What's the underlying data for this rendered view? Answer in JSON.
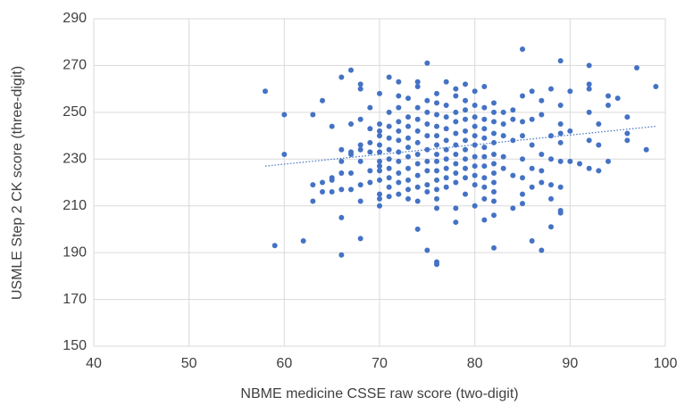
{
  "chart_data": {
    "type": "scatter",
    "xlabel": "NBME medicine CSSE raw score (two-digit)",
    "ylabel": "USMLE Step 2 CK score (three-digit)",
    "xlim": [
      40,
      100
    ],
    "xticks": [
      40,
      50,
      60,
      70,
      80,
      90,
      100
    ],
    "ylim": [
      150,
      290
    ],
    "yticks": [
      150,
      170,
      190,
      210,
      230,
      250,
      270,
      290
    ],
    "grid": true,
    "color": "#4472c4",
    "trendline": {
      "x": [
        58,
        99
      ],
      "y": [
        227,
        244
      ],
      "color": "#4472c4"
    },
    "x": [
      58,
      59,
      60,
      60,
      62,
      63,
      63,
      63,
      64,
      64,
      64,
      65,
      65,
      65,
      65,
      66,
      66,
      66,
      66,
      66,
      66,
      66,
      67,
      67,
      67,
      67,
      67,
      67,
      68,
      68,
      68,
      68,
      68,
      68,
      68,
      68,
      68,
      69,
      69,
      69,
      69,
      69,
      69,
      70,
      70,
      70,
      70,
      70,
      70,
      70,
      70,
      70,
      70,
      70,
      70,
      70,
      71,
      71,
      71,
      71,
      71,
      71,
      71,
      71,
      71,
      71,
      72,
      72,
      72,
      72,
      72,
      72,
      72,
      72,
      72,
      72,
      72,
      73,
      73,
      73,
      73,
      73,
      73,
      73,
      73,
      73,
      73,
      74,
      74,
      74,
      74,
      74,
      74,
      74,
      74,
      74,
      74,
      74,
      74,
      75,
      75,
      75,
      75,
      75,
      75,
      75,
      75,
      75,
      75,
      75,
      76,
      76,
      76,
      76,
      76,
      76,
      76,
      76,
      76,
      76,
      76,
      76,
      76,
      76,
      76,
      77,
      77,
      77,
      77,
      77,
      77,
      77,
      77,
      77,
      77,
      78,
      78,
      78,
      78,
      78,
      78,
      78,
      78,
      78,
      78,
      78,
      78,
      79,
      79,
      79,
      79,
      79,
      79,
      79,
      79,
      79,
      79,
      79,
      80,
      80,
      80,
      80,
      80,
      80,
      80,
      80,
      80,
      80,
      80,
      81,
      81,
      81,
      81,
      81,
      81,
      81,
      81,
      81,
      81,
      81,
      81,
      82,
      82,
      82,
      82,
      82,
      82,
      82,
      82,
      82,
      82,
      82,
      82,
      82,
      83,
      83,
      83,
      83,
      83,
      84,
      84,
      84,
      84,
      84,
      85,
      85,
      85,
      85,
      85,
      85,
      85,
      85,
      86,
      86,
      86,
      86,
      86,
      86,
      87,
      87,
      87,
      87,
      87,
      87,
      88,
      88,
      88,
      88,
      88,
      88,
      89,
      89,
      89,
      89,
      89,
      89,
      89,
      89,
      89,
      90,
      90,
      90,
      91,
      92,
      92,
      92,
      92,
      92,
      92,
      93,
      93,
      93,
      94,
      94,
      94,
      95,
      96,
      96,
      96,
      97,
      98,
      99
    ],
    "y": [
      259,
      193,
      249,
      232,
      195,
      219,
      212,
      249,
      220,
      216,
      255,
      221,
      216,
      244,
      222,
      265,
      234,
      229,
      224,
      217,
      205,
      189,
      268,
      245,
      233,
      232,
      224,
      217,
      262,
      260,
      247,
      236,
      234,
      229,
      219,
      212,
      196,
      252,
      243,
      237,
      233,
      225,
      220,
      258,
      245,
      242,
      240,
      236,
      233,
      229,
      227,
      225,
      221,
      215,
      213,
      210,
      265,
      250,
      244,
      239,
      234,
      230,
      226,
      222,
      218,
      214,
      263,
      257,
      252,
      246,
      242,
      238,
      233,
      229,
      224,
      220,
      215,
      256,
      248,
      244,
      239,
      235,
      231,
      226,
      221,
      217,
      213,
      263,
      261,
      252,
      247,
      242,
      237,
      232,
      228,
      223,
      218,
      212,
      200,
      271,
      255,
      250,
      245,
      240,
      234,
      229,
      225,
      219,
      216,
      191,
      258,
      254,
      249,
      244,
      240,
      236,
      232,
      229,
      225,
      221,
      217,
      213,
      209,
      186,
      185,
      263,
      253,
      248,
      243,
      238,
      234,
      230,
      226,
      222,
      218,
      260,
      257,
      250,
      246,
      241,
      236,
      232,
      228,
      224,
      220,
      209,
      203,
      262,
      255,
      251,
      247,
      242,
      238,
      234,
      230,
      226,
      222,
      215,
      259,
      253,
      248,
      244,
      240,
      236,
      231,
      227,
      223,
      219,
      210,
      261,
      252,
      247,
      243,
      239,
      235,
      231,
      227,
      222,
      218,
      213,
      204,
      254,
      250,
      246,
      241,
      237,
      232,
      228,
      224,
      220,
      216,
      212,
      206,
      192,
      250,
      245,
      240,
      231,
      226,
      251,
      247,
      238,
      223,
      209,
      277,
      257,
      246,
      240,
      230,
      222,
      215,
      211,
      259,
      247,
      236,
      226,
      218,
      195,
      255,
      249,
      232,
      225,
      220,
      191,
      260,
      240,
      230,
      219,
      213,
      201,
      272,
      253,
      245,
      241,
      237,
      229,
      218,
      208,
      207,
      259,
      242,
      229,
      228,
      270,
      262,
      260,
      250,
      238,
      226,
      245,
      236,
      225,
      257,
      253,
      229,
      256,
      248,
      241,
      238,
      269,
      234,
      261
    ]
  }
}
